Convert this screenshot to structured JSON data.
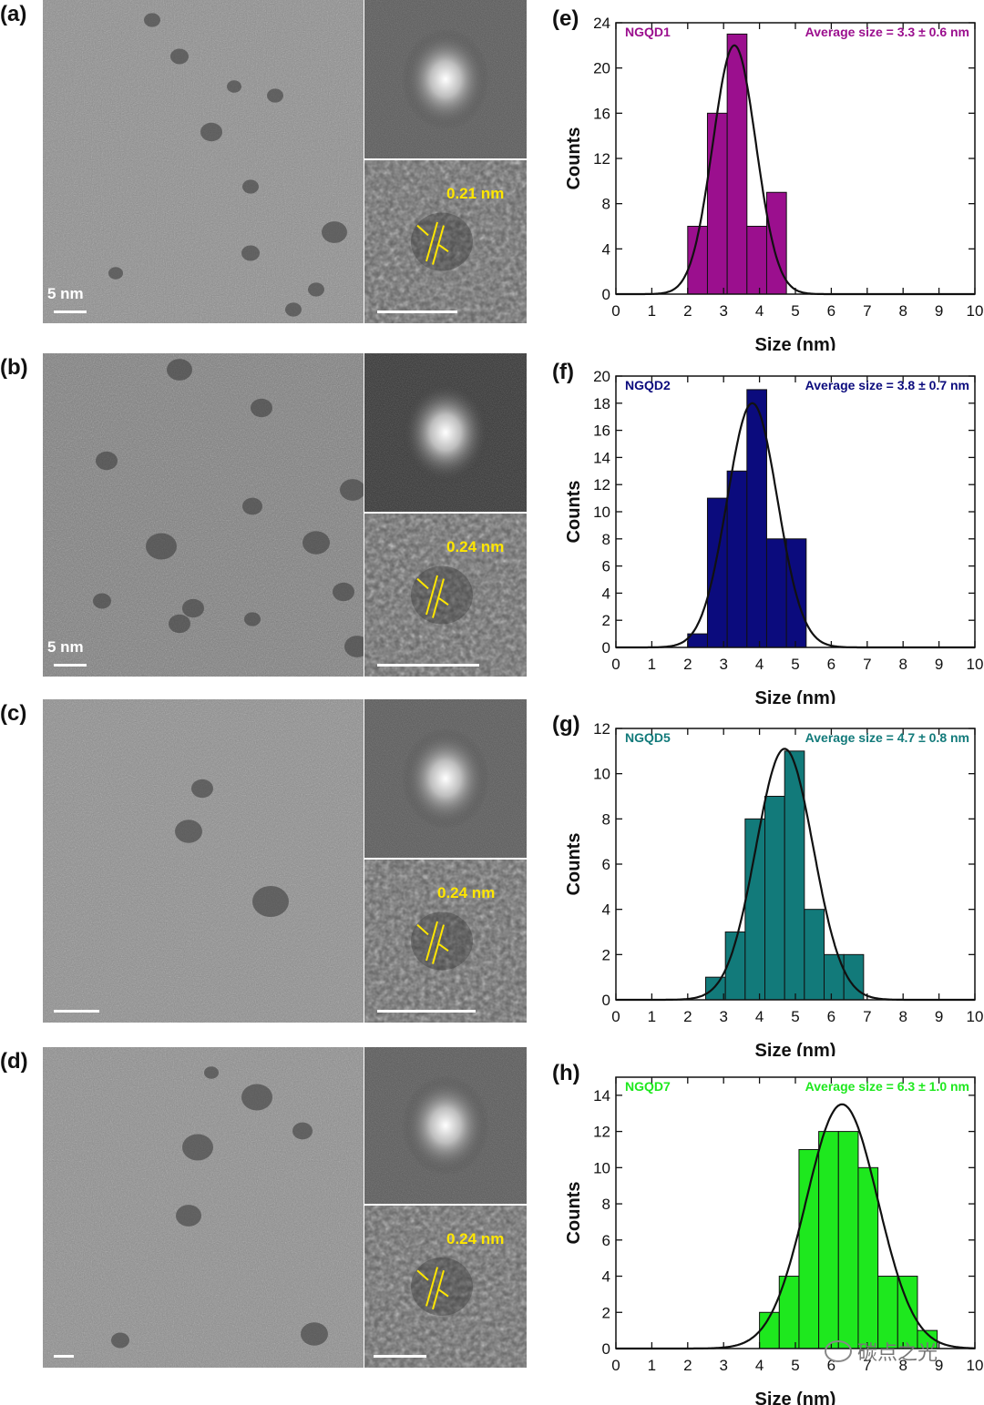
{
  "panels": {
    "tem": [
      {
        "label": "(a)",
        "scalebar": "5 nm",
        "fringe": "0.21 nm"
      },
      {
        "label": "(b)",
        "scalebar": "5 nm",
        "fringe": "0.24 nm"
      },
      {
        "label": "(c)",
        "scalebar": "",
        "fringe": "0.24 nm"
      },
      {
        "label": "(d)",
        "scalebar": "",
        "fringe": "0.24 nm"
      }
    ]
  },
  "watermark": "碳点之光",
  "chart_data": [
    {
      "type": "bar",
      "panel_label": "(e)",
      "name": "NGQD1",
      "annotation": "Average size = 3.3 ± 0.6 nm",
      "color": "#9b0f8e",
      "xlabel": "Size (nm)",
      "ylabel": "Counts",
      "xlim": [
        0,
        10
      ],
      "ylim": [
        0,
        24
      ],
      "xticks": [
        0,
        1,
        2,
        3,
        4,
        5,
        6,
        7,
        8,
        9,
        10
      ],
      "yticks": [
        0,
        4,
        8,
        12,
        16,
        20,
        24
      ],
      "bin_width": 0.55,
      "bins": [
        {
          "x0": 2.0,
          "count": 6
        },
        {
          "x0": 2.55,
          "count": 16
        },
        {
          "x0": 3.1,
          "count": 23
        },
        {
          "x0": 3.65,
          "count": 6
        },
        {
          "x0": 4.2,
          "count": 9
        }
      ],
      "fit": {
        "mean": 3.3,
        "sigma": 0.6,
        "peak": 22
      }
    },
    {
      "type": "bar",
      "panel_label": "(f)",
      "name": "NGQD2",
      "annotation": "Average size = 3.8 ± 0.7 nm",
      "color": "#0b0b7d",
      "xlabel": "Size (nm)",
      "ylabel": "Counts",
      "xlim": [
        0,
        10
      ],
      "ylim": [
        0,
        20
      ],
      "xticks": [
        0,
        1,
        2,
        3,
        4,
        5,
        6,
        7,
        8,
        9,
        10
      ],
      "yticks": [
        0,
        2,
        4,
        6,
        8,
        10,
        12,
        14,
        16,
        18,
        20
      ],
      "bin_width": 0.55,
      "bins": [
        {
          "x0": 2.0,
          "count": 1
        },
        {
          "x0": 2.55,
          "count": 11
        },
        {
          "x0": 3.1,
          "count": 13
        },
        {
          "x0": 3.65,
          "count": 19
        },
        {
          "x0": 4.2,
          "count": 8
        },
        {
          "x0": 4.75,
          "count": 8
        }
      ],
      "fit": {
        "mean": 3.8,
        "sigma": 0.7,
        "peak": 18
      }
    },
    {
      "type": "bar",
      "panel_label": "(g)",
      "name": "NGQD5",
      "annotation": "Average size = 4.7 ± 0.8 nm",
      "color": "#127a7a",
      "xlabel": "Size (nm)",
      "ylabel": "Counts",
      "xlim": [
        0,
        10
      ],
      "ylim": [
        0,
        12
      ],
      "xticks": [
        0,
        1,
        2,
        3,
        4,
        5,
        6,
        7,
        8,
        9,
        10
      ],
      "yticks": [
        0,
        2,
        4,
        6,
        8,
        10,
        12
      ],
      "bin_width": 0.55,
      "bins": [
        {
          "x0": 2.5,
          "count": 1
        },
        {
          "x0": 3.05,
          "count": 3
        },
        {
          "x0": 3.6,
          "count": 8
        },
        {
          "x0": 4.15,
          "count": 9
        },
        {
          "x0": 4.7,
          "count": 11
        },
        {
          "x0": 5.25,
          "count": 4
        },
        {
          "x0": 5.8,
          "count": 2
        },
        {
          "x0": 6.35,
          "count": 2
        }
      ],
      "fit": {
        "mean": 4.7,
        "sigma": 0.8,
        "peak": 11.1
      }
    },
    {
      "type": "bar",
      "panel_label": "(h)",
      "name": "NGQD7",
      "annotation": "Average size = 6.3 ± 1.0 nm",
      "color": "#1ee81e",
      "xlabel": "Size (nm)",
      "ylabel": "Counts",
      "xlim": [
        0,
        10
      ],
      "ylim": [
        0,
        15
      ],
      "xticks": [
        0,
        1,
        2,
        3,
        4,
        5,
        6,
        7,
        8,
        9,
        10
      ],
      "yticks": [
        0,
        2,
        4,
        6,
        8,
        10,
        12,
        14
      ],
      "bin_width": 0.55,
      "bins": [
        {
          "x0": 4.0,
          "count": 2
        },
        {
          "x0": 4.55,
          "count": 4
        },
        {
          "x0": 5.1,
          "count": 11
        },
        {
          "x0": 5.65,
          "count": 12
        },
        {
          "x0": 6.2,
          "count": 12
        },
        {
          "x0": 6.75,
          "count": 10
        },
        {
          "x0": 7.3,
          "count": 4
        },
        {
          "x0": 7.85,
          "count": 4
        },
        {
          "x0": 8.4,
          "count": 1
        }
      ],
      "fit": {
        "mean": 6.3,
        "sigma": 1.0,
        "peak": 13.5
      }
    }
  ]
}
